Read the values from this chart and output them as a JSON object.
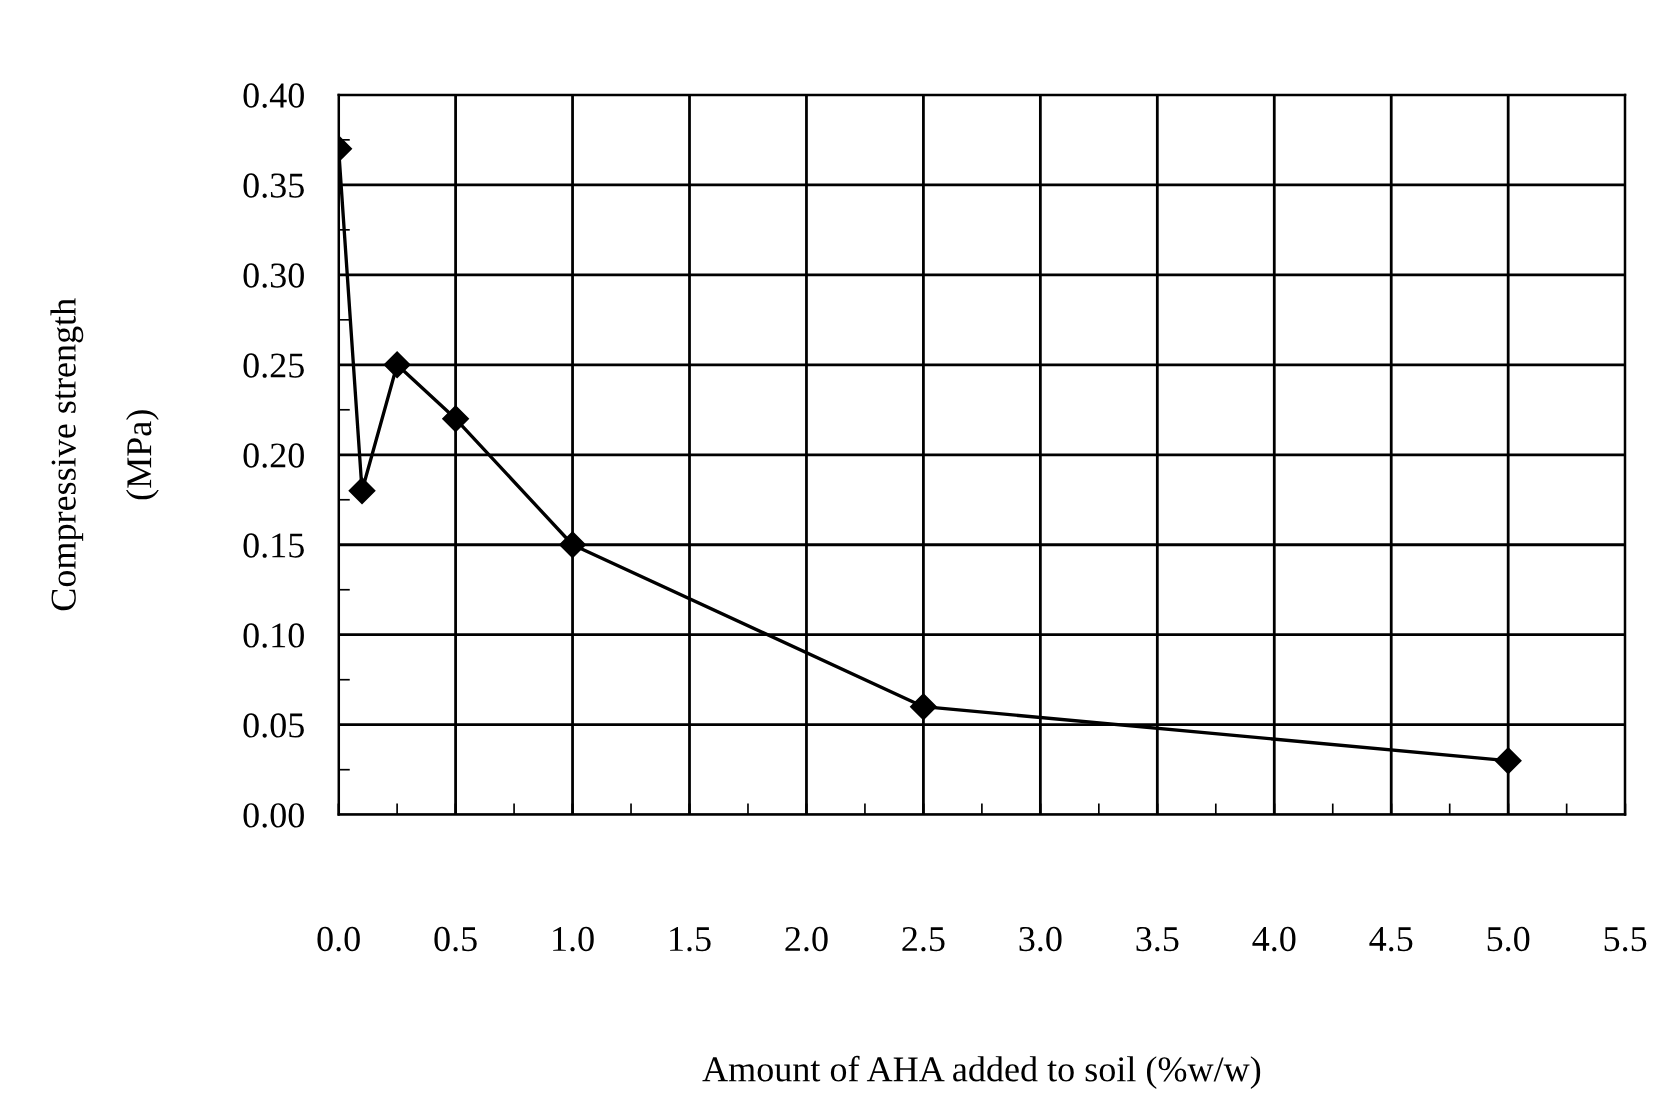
{
  "chart_data": {
    "type": "line",
    "xlabel": "Amount of AHA added to soil (%w/w)",
    "ylabel": "Compressive strength\n\n(MPa)",
    "x": [
      0,
      0.1,
      0.25,
      0.5,
      1.0,
      2.5,
      5.0
    ],
    "series": [
      {
        "color": "#000000",
        "values": [
          0.37,
          0.18,
          0.25,
          0.22,
          0.15,
          0.06,
          0.03
        ]
      }
    ],
    "xlim": [
      0,
      5.5
    ],
    "xticks": [
      {
        "value": 0,
        "label": "0.0"
      },
      0.5,
      {
        "value": 1,
        "label": "1.0"
      },
      1.5,
      {
        "value": 2,
        "label": "2.0"
      },
      2.5,
      {
        "value": 3,
        "label": "3.0"
      },
      3.5,
      {
        "value": 4,
        "label": "4.0"
      },
      4.5,
      {
        "value": 5,
        "label": "5.0"
      },
      5.5
    ],
    "ylim": [
      0,
      0.4
    ],
    "yticks": [
      {
        "value": 0,
        "label": "0.00"
      },
      {
        "value": 0.05,
        "label": "0.05"
      },
      {
        "value": 0.1,
        "label": "0.10"
      },
      {
        "value": 0.15,
        "label": "0.15"
      },
      {
        "value": 0.2,
        "label": "0.20"
      },
      {
        "value": 0.25,
        "label": "0.25"
      },
      {
        "value": 0.3,
        "label": "0.30"
      },
      {
        "value": 0.35,
        "label": "0.35"
      },
      {
        "value": 0.4,
        "label": "0.40"
      }
    ],
    "grid": true,
    "marker": "diamond",
    "line_style": "solid"
  }
}
